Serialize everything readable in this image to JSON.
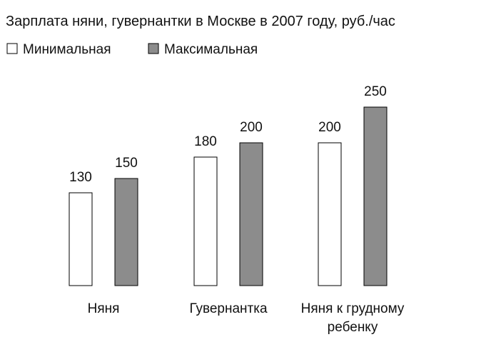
{
  "chart_data": {
    "type": "bar",
    "title": "Зарплата няни, гувернантки в Москве в 2007 году, руб./час",
    "categories": [
      "Няня",
      "Гувернантка",
      "Няня к грудному ребенку"
    ],
    "series": [
      {
        "name": "Минимальная",
        "color": "#ffffff",
        "values": [
          130,
          180,
          200
        ]
      },
      {
        "name": "Максимальная",
        "color": "#8c8c8c",
        "values": [
          150,
          200,
          250
        ]
      }
    ]
  }
}
